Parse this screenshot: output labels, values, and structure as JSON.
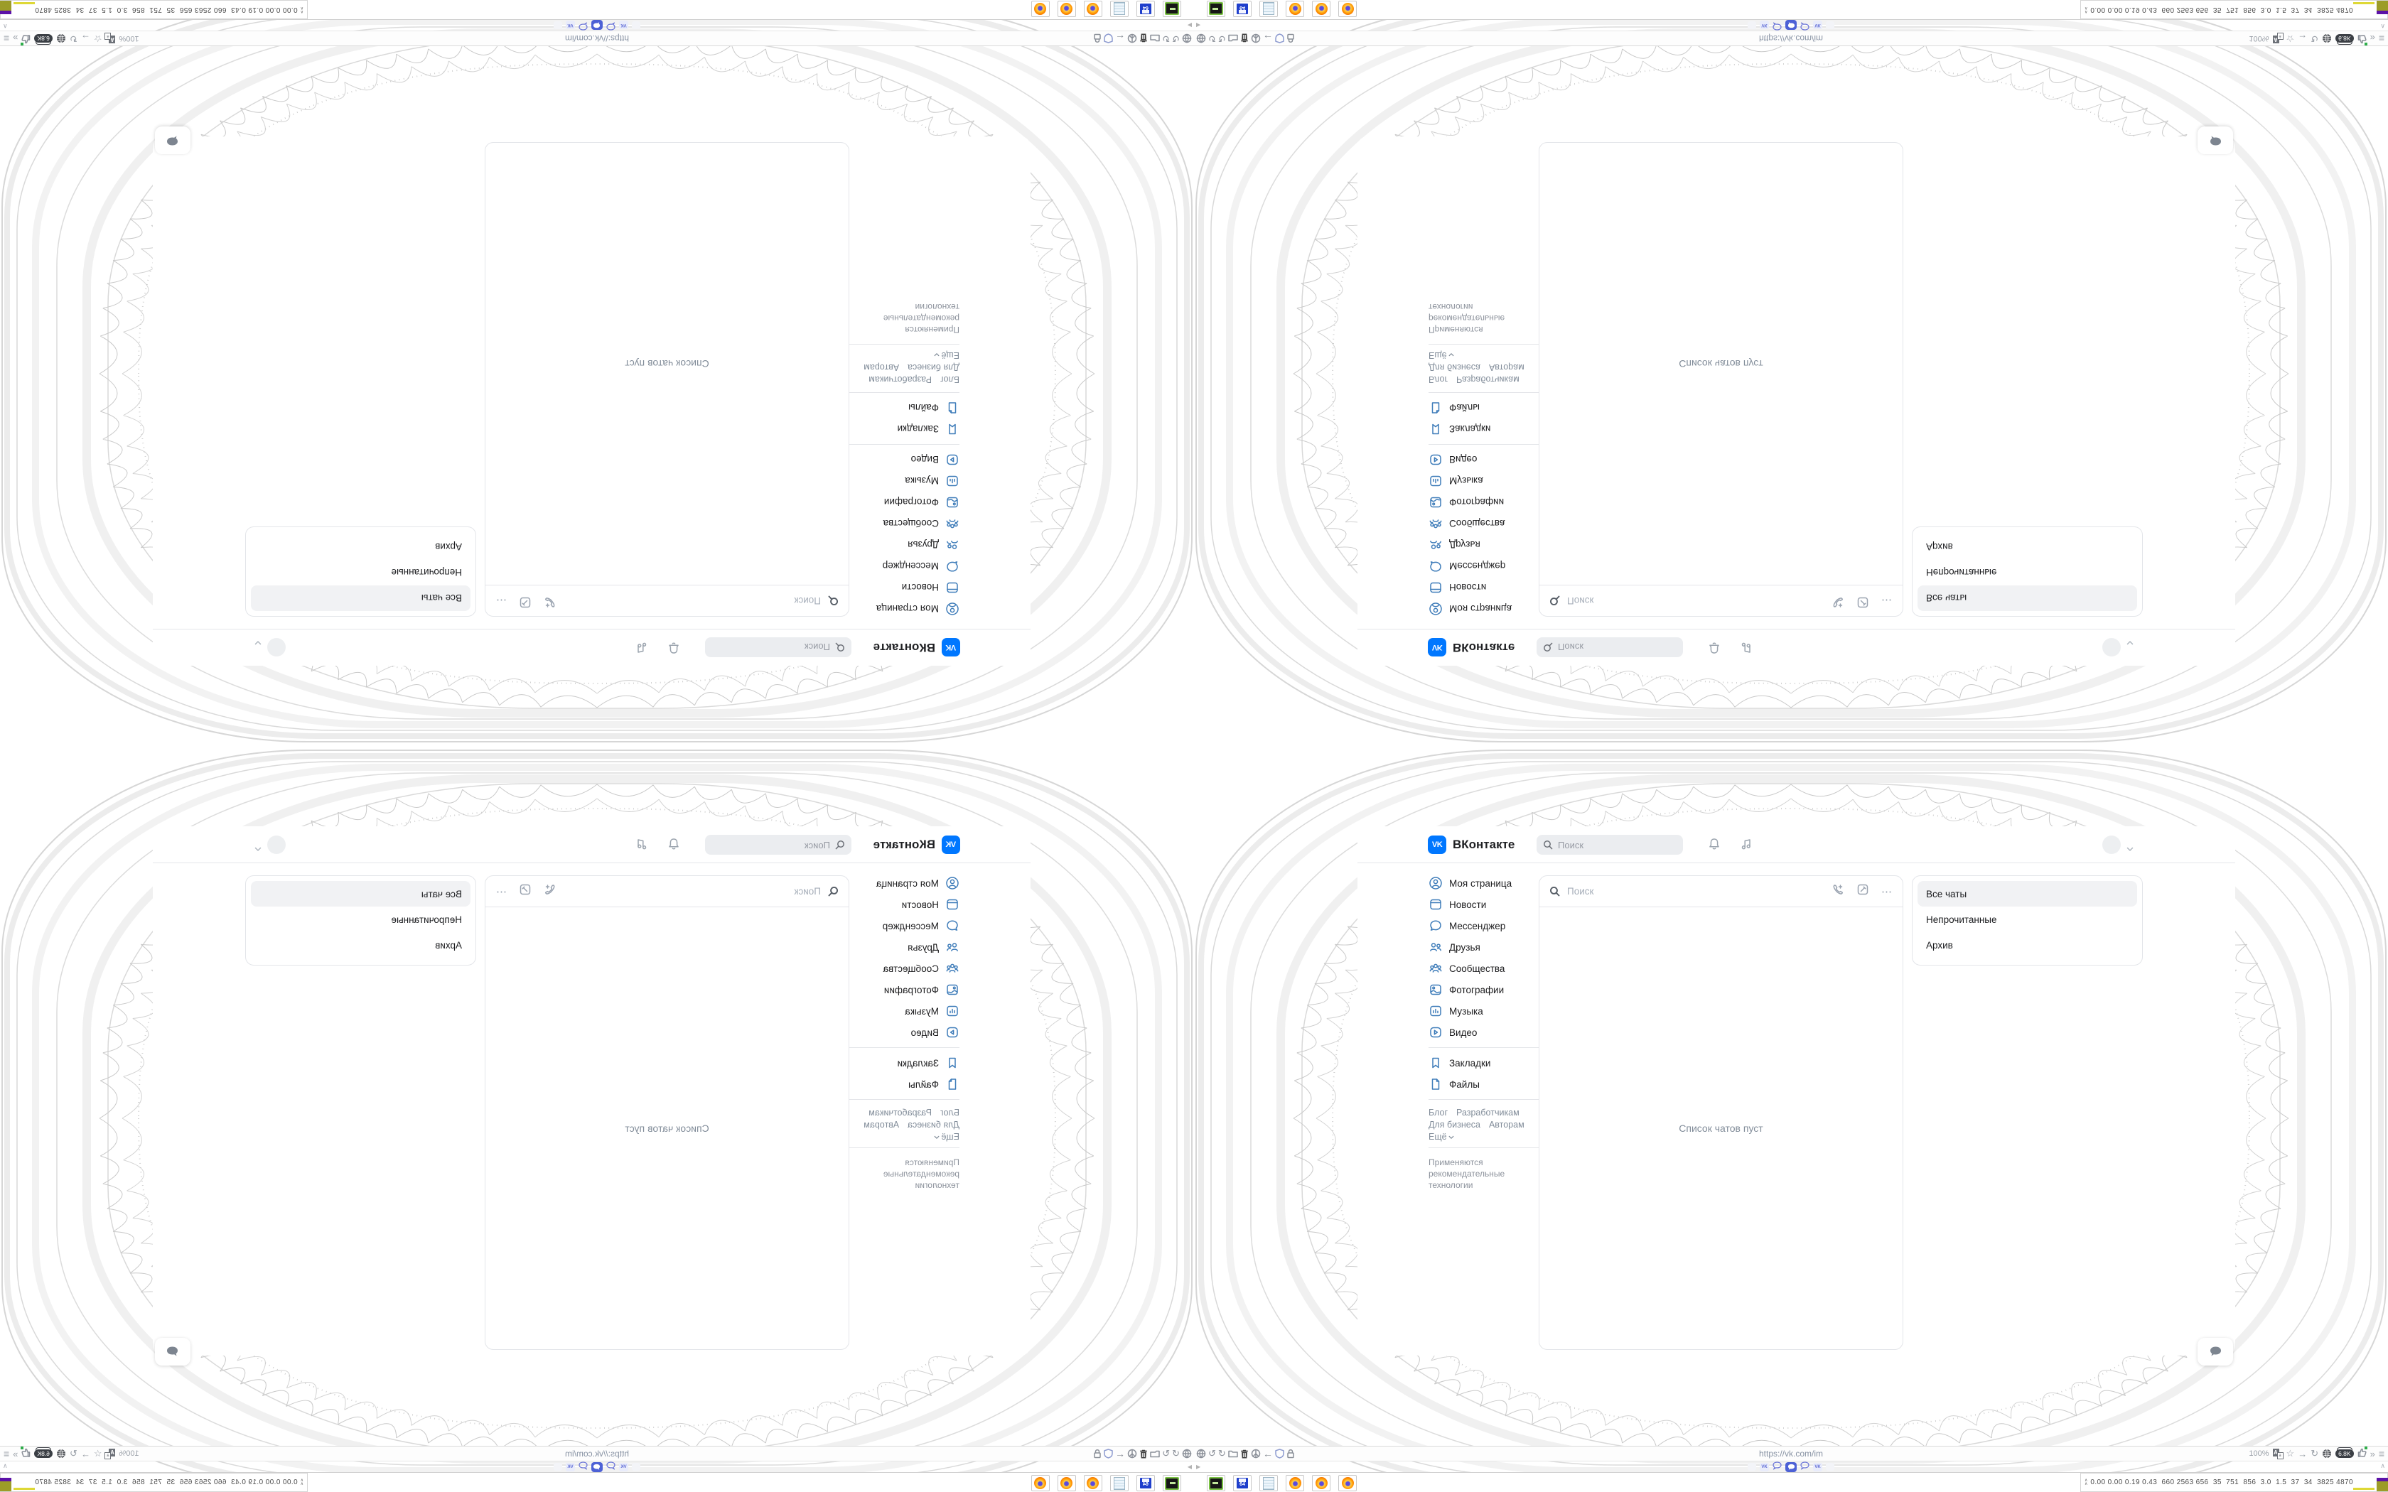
{
  "vk": {
    "logo_text": "VK",
    "wordmark": "ВКонтакте",
    "header_search_placeholder": "Поиск",
    "nav": [
      {
        "icon": "user-circle-icon",
        "label": "Моя страница"
      },
      {
        "icon": "newsfeed-icon",
        "label": "Новости"
      },
      {
        "icon": "messenger-icon",
        "label": "Мессенджер"
      },
      {
        "icon": "friends-icon",
        "label": "Друзья"
      },
      {
        "icon": "communities-icon",
        "label": "Сообщества"
      },
      {
        "icon": "photos-icon",
        "label": "Фотографии"
      },
      {
        "icon": "music-icon",
        "label": "Музыка"
      },
      {
        "icon": "video-icon",
        "label": "Видео"
      },
      {
        "icon": "bookmarks-icon",
        "label": "Закладки"
      },
      {
        "icon": "files-icon",
        "label": "Файлы"
      }
    ],
    "footer_links": {
      "blog": "Блог",
      "developers": "Разработчикам",
      "business": "Для бизнеса",
      "authors": "Авторам",
      "more": "Ещё"
    },
    "footer_note": [
      "Применяются",
      "рекомендательные",
      "технологии"
    ],
    "messenger": {
      "search_placeholder": "Поиск",
      "empty_text": "Список чатов пуст"
    },
    "filters": [
      "Все чаты",
      "Непрочитанные",
      "Архив"
    ]
  },
  "browser": {
    "url": "https://vk.com/im",
    "zoom_level": "100%",
    "counter_badge": "6.8K",
    "glyphs": {
      "back": "←",
      "undo": "↺",
      "redo": "↻",
      "star": "☆",
      "go": "→",
      "overflow": "»",
      "menu": "≡",
      "tab_scroll": "▶",
      "collapse": "∧",
      "dots": "⋯"
    }
  },
  "taskbar": {
    "floppy_label": "64",
    "stats": "0.00 0.00 0.19 0.43  660 2563 656  35  751  856  3.0  1.5  37  34  3825 4870"
  }
}
